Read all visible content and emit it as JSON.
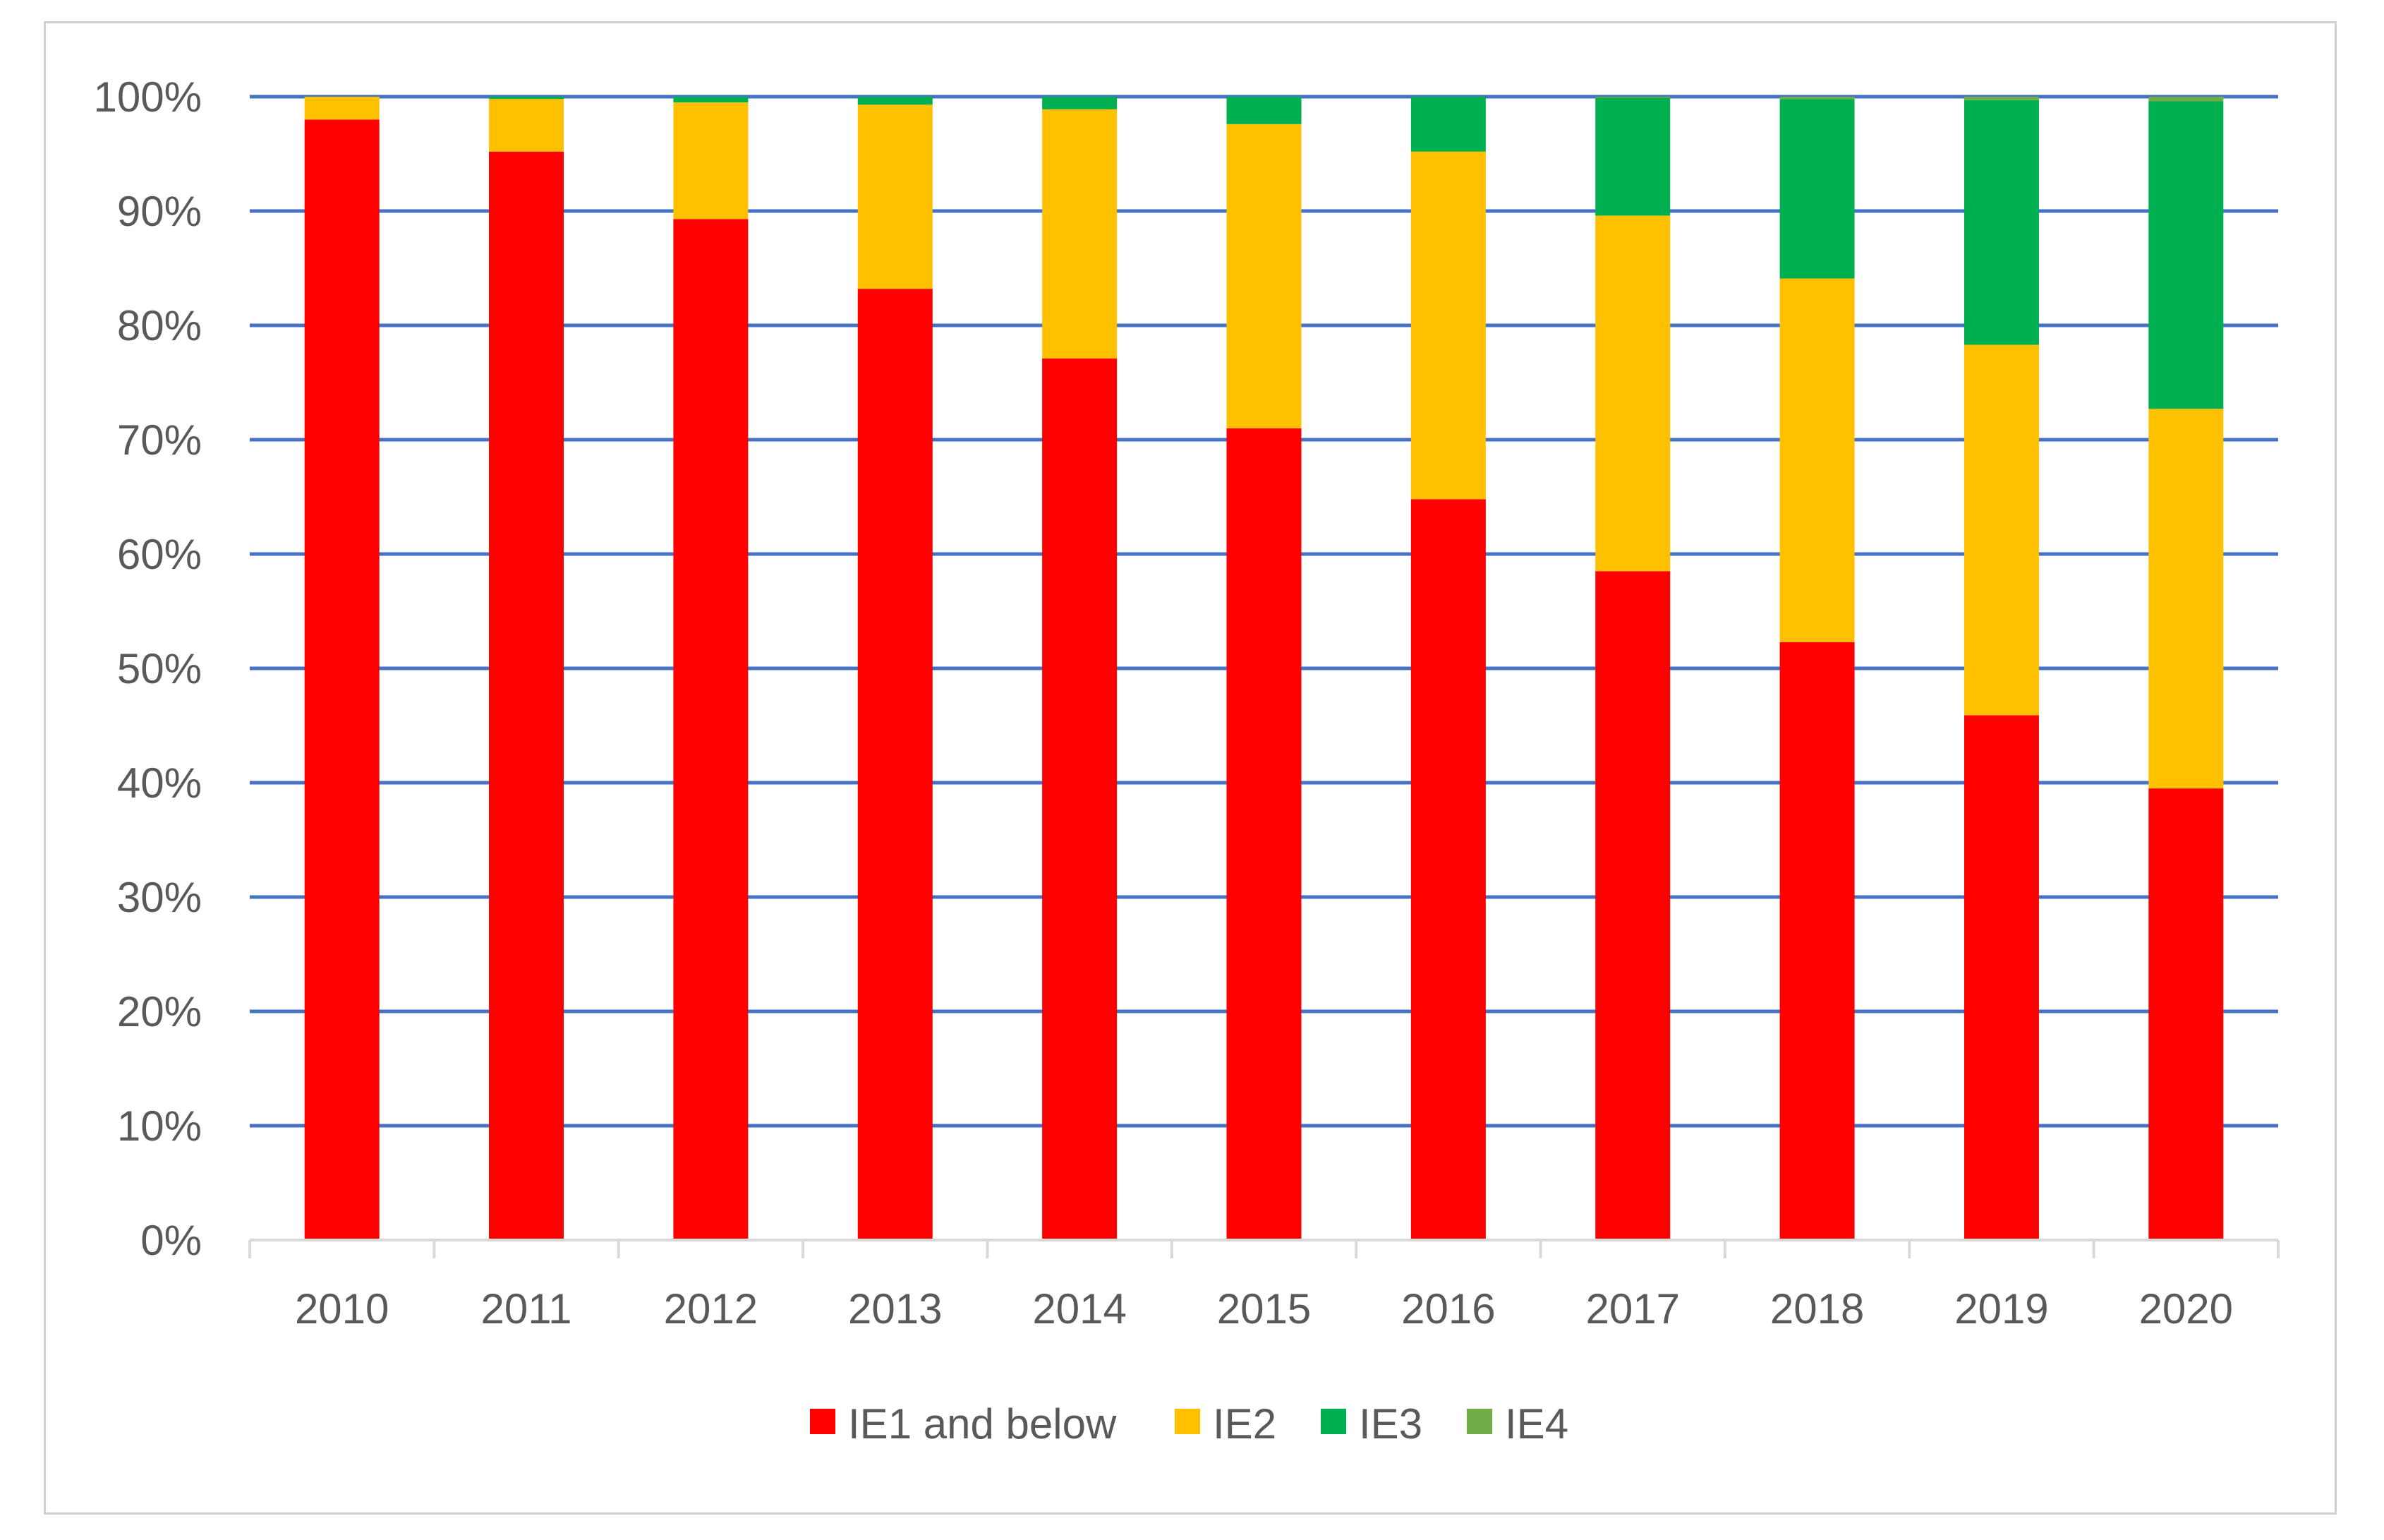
{
  "chart_data": {
    "type": "bar",
    "stacked": true,
    "title": "",
    "xlabel": "",
    "ylabel": "",
    "ylim": [
      0,
      100
    ],
    "ytick_labels": [
      "0%",
      "10%",
      "20%",
      "30%",
      "40%",
      "50%",
      "60%",
      "70%",
      "80%",
      "90%",
      "100%"
    ],
    "categories": [
      "2010",
      "2011",
      "2012",
      "2013",
      "2014",
      "2015",
      "2016",
      "2017",
      "2018",
      "2019",
      "2020"
    ],
    "series": [
      {
        "name": "IE1 and below",
        "color": "#ff0000",
        "values": [
          98.0,
          95.2,
          89.3,
          83.2,
          77.1,
          71.0,
          64.8,
          58.5,
          52.3,
          45.9,
          39.5
        ]
      },
      {
        "name": "IE2",
        "color": "#ffc000",
        "values": [
          2.0,
          4.6,
          10.2,
          16.1,
          21.8,
          26.6,
          30.4,
          31.1,
          31.8,
          32.4,
          33.2
        ]
      },
      {
        "name": "IE3",
        "color": "#00b050",
        "values": [
          0.0,
          0.2,
          0.5,
          0.7,
          1.1,
          2.4,
          4.8,
          10.3,
          15.7,
          21.4,
          26.9
        ]
      },
      {
        "name": "IE4",
        "color": "#70ad47",
        "values": [
          0.0,
          0.0,
          0.0,
          0.0,
          0.0,
          0.0,
          0.0,
          0.1,
          0.2,
          0.3,
          0.4
        ]
      }
    ],
    "grid": true,
    "gridline_color": "#4472c4",
    "legend_position": "bottom"
  }
}
